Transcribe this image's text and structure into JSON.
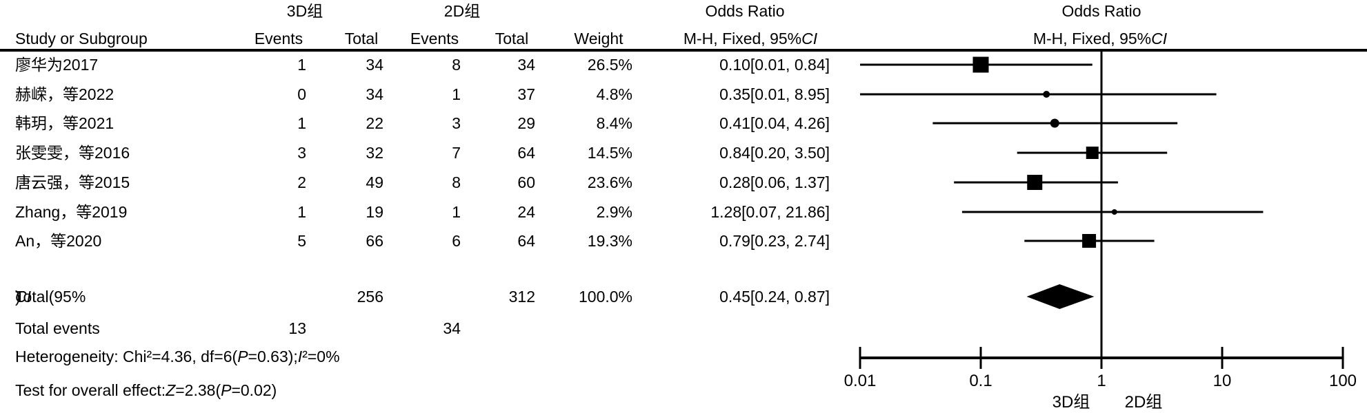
{
  "header": {
    "group1": "3D组",
    "group2": "2D组",
    "odds_ratio_left": "Odds Ratio",
    "odds_ratio_right": "Odds Ratio",
    "col_study": "Study or Subgroup",
    "col_events1": "Events",
    "col_total1": "Total",
    "col_events2": "Events",
    "col_total2": "Total",
    "col_weight": "Weight",
    "mh": {
      "pre": "M-H, Fixed, 95%",
      "italic": "CI"
    }
  },
  "table": {
    "rows": [
      {
        "study": "廖华为2017",
        "events1": "1",
        "total1": "34",
        "events2": "8",
        "total2": "34",
        "weight": "26.5%",
        "or_ci": "0.10[0.01, 0.84]"
      },
      {
        "study": "赫嵘，等2022",
        "events1": "0",
        "total1": "34",
        "events2": "1",
        "total2": "37",
        "weight": "4.8%",
        "or_ci": "0.35[0.01, 8.95]"
      },
      {
        "study": "韩玥，等2021",
        "events1": "1",
        "total1": "22",
        "events2": "3",
        "total2": "29",
        "weight": "8.4%",
        "or_ci": "0.41[0.04, 4.26]"
      },
      {
        "study": "张雯雯，等2016",
        "events1": "3",
        "total1": "32",
        "events2": "7",
        "total2": "64",
        "weight": "14.5%",
        "or_ci": "0.84[0.20, 3.50]"
      },
      {
        "study": "唐云强，等2015",
        "events1": "2",
        "total1": "49",
        "events2": "8",
        "total2": "60",
        "weight": "23.6%",
        "or_ci": "0.28[0.06, 1.37]"
      },
      {
        "study": "Zhang，等2019",
        "events1": "1",
        "total1": "19",
        "events2": "1",
        "total2": "24",
        "weight": "2.9%",
        "or_ci": "1.28[0.07, 21.86]"
      },
      {
        "study": "An，等2020",
        "events1": "5",
        "total1": "66",
        "events2": "6",
        "total2": "64",
        "weight": "19.3%",
        "or_ci": "0.79[0.23, 2.74]"
      }
    ],
    "total": {
      "label_pre": "Total(95%",
      "label_italic": "CI",
      "label_post": ")",
      "total1": "256",
      "total2": "312",
      "weight": "100.0%",
      "or_ci": "0.45[0.24, 0.87]"
    },
    "total_events": {
      "label": "Total events",
      "events1": "13",
      "events2": "34"
    },
    "heterogeneity": {
      "pre": "Heterogeneity: Chi²=4.36, df=6(",
      "italic1": "P",
      "mid": "=0.63);",
      "italic2": "I",
      "post": "²=0%"
    },
    "overall_effect": {
      "pre": "Test for overall effect:",
      "italic1": "Z",
      "mid": "=2.38(",
      "italic2": "P",
      "post": "=0.02)"
    }
  },
  "axis": {
    "tick_labels": [
      "0.01",
      "0.1",
      "1",
      "10",
      "100"
    ],
    "left_group": "3D组",
    "right_group": "2D组"
  },
  "chart_data": {
    "type": "scatter",
    "variant": "forest_plot",
    "title": "Odds Ratio",
    "subtitle": "M-H, Fixed, 95%CI",
    "x_scale": "log",
    "xlim": [
      0.01,
      100
    ],
    "x_ticks": [
      0.01,
      0.1,
      1,
      10,
      100
    ],
    "no_effect_line": 1,
    "favours_left": "3D组",
    "favours_right": "2D组",
    "studies": [
      {
        "name": "廖华为2017",
        "or": 0.1,
        "ci_low": 0.01,
        "ci_high": 0.84,
        "weight_pct": 26.5
      },
      {
        "name": "赫嵘，等2022",
        "or": 0.35,
        "ci_low": 0.01,
        "ci_high": 8.95,
        "weight_pct": 4.8
      },
      {
        "name": "韩玥，等2021",
        "or": 0.41,
        "ci_low": 0.04,
        "ci_high": 4.26,
        "weight_pct": 8.4
      },
      {
        "name": "张雯雯，等2016",
        "or": 0.84,
        "ci_low": 0.2,
        "ci_high": 3.5,
        "weight_pct": 14.5
      },
      {
        "name": "唐云强，等2015",
        "or": 0.28,
        "ci_low": 0.06,
        "ci_high": 1.37,
        "weight_pct": 23.6
      },
      {
        "name": "Zhang，等2019",
        "or": 1.28,
        "ci_low": 0.07,
        "ci_high": 21.86,
        "weight_pct": 2.9
      },
      {
        "name": "An，等2020",
        "or": 0.79,
        "ci_low": 0.23,
        "ci_high": 2.74,
        "weight_pct": 19.3
      }
    ],
    "total": {
      "name": "Total(95%CI)",
      "or": 0.45,
      "ci_low": 0.24,
      "ci_high": 0.87,
      "weight_pct": 100.0
    }
  }
}
